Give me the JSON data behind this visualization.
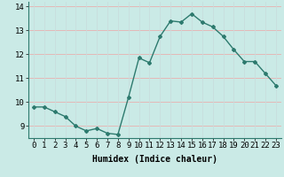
{
  "x": [
    0,
    1,
    2,
    3,
    4,
    5,
    6,
    7,
    8,
    9,
    10,
    11,
    12,
    13,
    14,
    15,
    16,
    17,
    18,
    19,
    20,
    21,
    22,
    23
  ],
  "y": [
    9.8,
    9.8,
    9.6,
    9.4,
    9.0,
    8.8,
    8.9,
    8.7,
    8.65,
    10.2,
    11.85,
    11.65,
    12.75,
    13.4,
    13.35,
    13.7,
    13.35,
    13.15,
    12.75,
    12.2,
    11.7,
    11.7,
    11.2,
    10.7
  ],
  "line_color": "#2d7a6e",
  "bg_color": "#caeae6",
  "grid_color_h": "#e8b0b0",
  "grid_color_v": "#c8dedd",
  "xlabel": "Humidex (Indice chaleur)",
  "ylim": [
    8.5,
    14.2
  ],
  "yticks": [
    9,
    10,
    11,
    12,
    13,
    14
  ],
  "marker": "D",
  "marker_size": 2.0,
  "linewidth": 1.0,
  "xlabel_fontsize": 7,
  "tick_fontsize": 6.5
}
